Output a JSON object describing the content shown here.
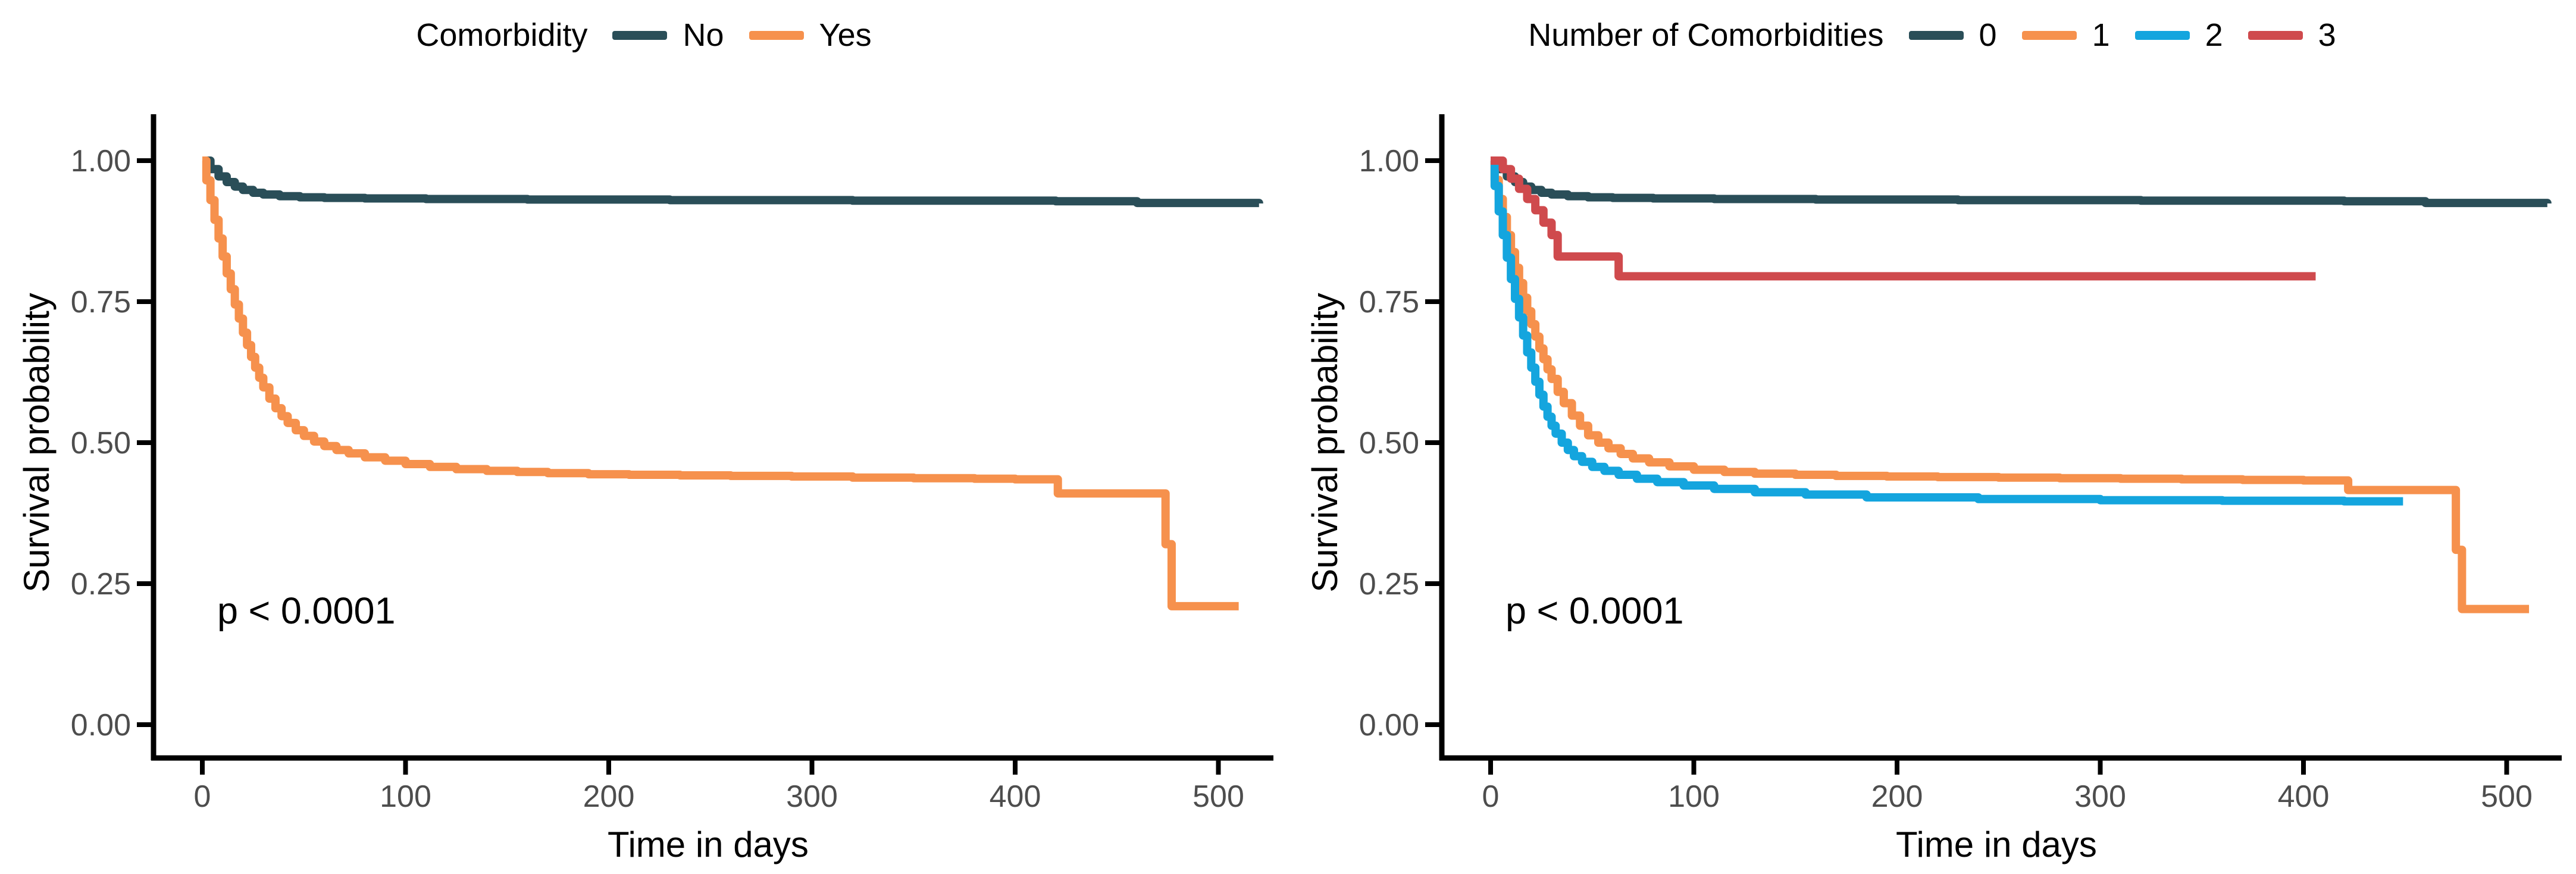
{
  "colors": {
    "group_dark_teal": "#2A4E58",
    "group_orange": "#F6914D",
    "group_blue": "#14A5DE",
    "group_red": "#CF4A4D",
    "tick_text": "#4d4d4d",
    "axis": "#000000"
  },
  "chart_data": [
    {
      "type": "line",
      "subtype": "kaplan-meier-step",
      "title": "Comorbidity",
      "xlabel": "Time in days",
      "ylabel": "Survival probability",
      "annotation": "p < 0.0001",
      "legend_position": "top",
      "grid": false,
      "xlim": [
        0,
        520
      ],
      "ylim": [
        0.0,
        1.0
      ],
      "xticks": [
        0,
        100,
        200,
        300,
        400,
        500
      ],
      "xtick_labels": [
        "0",
        "100",
        "200",
        "300",
        "400",
        "500"
      ],
      "yticks": [
        0,
        0.25,
        0.5,
        0.75,
        1.0
      ],
      "ytick_labels": [
        "0.00",
        "0.25",
        "0.50",
        "0.75",
        "1.00"
      ],
      "series": [
        {
          "name": "No",
          "color": "#2A4E58",
          "x": [
            0,
            4,
            8,
            12,
            16,
            20,
            25,
            30,
            38,
            48,
            60,
            80,
            110,
            160,
            230,
            320,
            420,
            460,
            520
          ],
          "y": [
            1.0,
            0.985,
            0.972,
            0.962,
            0.954,
            0.948,
            0.943,
            0.94,
            0.937,
            0.935,
            0.934,
            0.933,
            0.932,
            0.931,
            0.93,
            0.929,
            0.928,
            0.925,
            0.924
          ]
        },
        {
          "name": "Yes",
          "color": "#F6914D",
          "x": [
            0,
            2,
            4,
            6,
            8,
            10,
            12,
            14,
            16,
            18,
            20,
            22,
            24,
            26,
            28,
            30,
            33,
            36,
            39,
            42,
            46,
            50,
            55,
            60,
            66,
            72,
            80,
            90,
            100,
            112,
            125,
            140,
            155,
            170,
            190,
            210,
            235,
            260,
            290,
            320,
            350,
            380,
            400,
            421,
            474,
            477,
            510
          ],
          "y": [
            1.0,
            0.965,
            0.93,
            0.895,
            0.862,
            0.83,
            0.8,
            0.772,
            0.745,
            0.72,
            0.695,
            0.673,
            0.652,
            0.633,
            0.615,
            0.598,
            0.578,
            0.561,
            0.547,
            0.535,
            0.522,
            0.512,
            0.502,
            0.494,
            0.487,
            0.481,
            0.474,
            0.468,
            0.462,
            0.457,
            0.453,
            0.45,
            0.448,
            0.446,
            0.444,
            0.443,
            0.442,
            0.441,
            0.44,
            0.438,
            0.437,
            0.436,
            0.435,
            0.41,
            0.32,
            0.21,
            0.21
          ]
        }
      ]
    },
    {
      "type": "line",
      "subtype": "kaplan-meier-step",
      "title": "Number of Comorbidities",
      "xlabel": "Time in days",
      "ylabel": "Survival probability",
      "annotation": "p < 0.0001",
      "legend_position": "top",
      "grid": false,
      "xlim": [
        0,
        520
      ],
      "ylim": [
        0.0,
        1.0
      ],
      "xticks": [
        0,
        100,
        200,
        300,
        400,
        500
      ],
      "xtick_labels": [
        "0",
        "100",
        "200",
        "300",
        "400",
        "500"
      ],
      "yticks": [
        0,
        0.25,
        0.5,
        0.75,
        1.0
      ],
      "ytick_labels": [
        "0.00",
        "0.25",
        "0.50",
        "0.75",
        "1.00"
      ],
      "series": [
        {
          "name": "0",
          "color": "#2A4E58",
          "x": [
            0,
            4,
            8,
            12,
            16,
            20,
            25,
            30,
            38,
            48,
            60,
            80,
            110,
            160,
            230,
            320,
            420,
            460,
            520
          ],
          "y": [
            1.0,
            0.985,
            0.972,
            0.962,
            0.954,
            0.948,
            0.943,
            0.94,
            0.937,
            0.935,
            0.934,
            0.933,
            0.932,
            0.931,
            0.93,
            0.929,
            0.928,
            0.925,
            0.924
          ]
        },
        {
          "name": "1",
          "color": "#F6914D",
          "x": [
            0,
            2,
            4,
            6,
            8,
            10,
            12,
            14,
            16,
            18,
            20,
            22,
            24,
            26,
            28,
            30,
            33,
            36,
            40,
            44,
            48,
            53,
            58,
            64,
            70,
            78,
            88,
            100,
            115,
            130,
            150,
            170,
            195,
            220,
            250,
            280,
            310,
            340,
            370,
            400,
            422,
            475,
            478,
            511
          ],
          "y": [
            1.0,
            0.966,
            0.932,
            0.9,
            0.868,
            0.838,
            0.81,
            0.783,
            0.757,
            0.733,
            0.71,
            0.688,
            0.667,
            0.648,
            0.63,
            0.613,
            0.59,
            0.57,
            0.548,
            0.53,
            0.513,
            0.5,
            0.49,
            0.48,
            0.472,
            0.465,
            0.458,
            0.452,
            0.448,
            0.445,
            0.443,
            0.441,
            0.44,
            0.439,
            0.438,
            0.437,
            0.436,
            0.435,
            0.434,
            0.433,
            0.416,
            0.31,
            0.205,
            0.205
          ]
        },
        {
          "name": "2",
          "color": "#14A5DE",
          "x": [
            0,
            2,
            4,
            6,
            8,
            10,
            12,
            14,
            16,
            18,
            20,
            22,
            24,
            26,
            28,
            30,
            32,
            35,
            38,
            41,
            45,
            50,
            56,
            63,
            72,
            82,
            95,
            110,
            130,
            155,
            185,
            240,
            300,
            360,
            420,
            449
          ],
          "y": [
            1.0,
            0.955,
            0.91,
            0.868,
            0.828,
            0.79,
            0.755,
            0.722,
            0.69,
            0.66,
            0.633,
            0.608,
            0.585,
            0.564,
            0.546,
            0.53,
            0.516,
            0.5,
            0.487,
            0.476,
            0.466,
            0.457,
            0.45,
            0.443,
            0.436,
            0.43,
            0.424,
            0.418,
            0.412,
            0.408,
            0.403,
            0.4,
            0.398,
            0.397,
            0.396,
            0.396
          ]
        },
        {
          "name": "3",
          "color": "#CF4A4D",
          "x": [
            0,
            6,
            10,
            14,
            18,
            22,
            26,
            30,
            33,
            63,
            406
          ],
          "y": [
            1.0,
            0.985,
            0.968,
            0.95,
            0.932,
            0.912,
            0.89,
            0.868,
            0.83,
            0.795,
            0.795
          ]
        }
      ]
    }
  ]
}
